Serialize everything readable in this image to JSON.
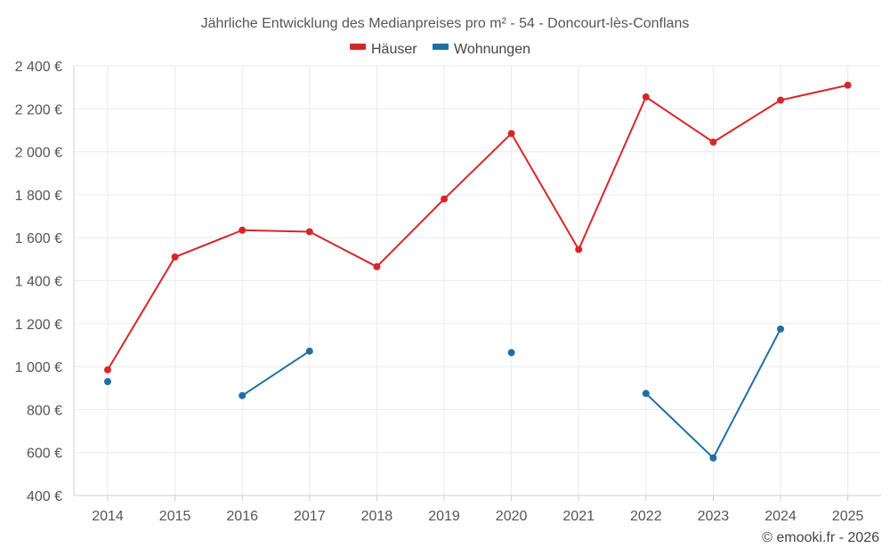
{
  "chart_data": {
    "type": "line",
    "title": "Jährliche Entwicklung des Medianpreises pro m² - 54 - Doncourt-lès-Conflans",
    "categories": [
      "2014",
      "2015",
      "2016",
      "2017",
      "2018",
      "2019",
      "2020",
      "2021",
      "2022",
      "2023",
      "2024",
      "2025"
    ],
    "ylim": [
      400,
      2400
    ],
    "yticks": [
      400,
      600,
      800,
      1000,
      1200,
      1400,
      1600,
      1800,
      2000,
      2200,
      2400
    ],
    "ytick_labels": [
      "400 €",
      "600 €",
      "800 €",
      "1 000 €",
      "1 200 €",
      "1 400 €",
      "1 600 €",
      "1 800 €",
      "2 000 €",
      "2 200 €",
      "2 400 €"
    ],
    "legend_position": "top-center",
    "series": [
      {
        "name": "Häuser",
        "color": "#d62728",
        "values": [
          985,
          1510,
          1635,
          1628,
          1465,
          1780,
          2085,
          1545,
          2255,
          2045,
          2240,
          2310
        ]
      },
      {
        "name": "Wohnungen",
        "color": "#1f6fa3",
        "values": [
          930,
          null,
          865,
          1072,
          null,
          null,
          1065,
          null,
          875,
          575,
          1175,
          null
        ]
      }
    ]
  },
  "credit": "© emooki.fr - 2026"
}
